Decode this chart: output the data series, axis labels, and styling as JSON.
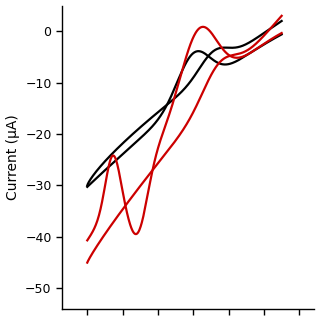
{
  "ylabel": "Current (μA)",
  "ylim": [
    -54,
    5
  ],
  "yticks": [
    0,
    -10,
    -20,
    -30,
    -40,
    -50
  ],
  "background_color": "#ffffff",
  "line_width": 1.6,
  "black_color": "#000000",
  "red_color": "#cc0000",
  "xlim": [
    0.0,
    1.0
  ],
  "xtick_positions": [
    0.1,
    0.24,
    0.38,
    0.52,
    0.66,
    0.8,
    0.94
  ]
}
